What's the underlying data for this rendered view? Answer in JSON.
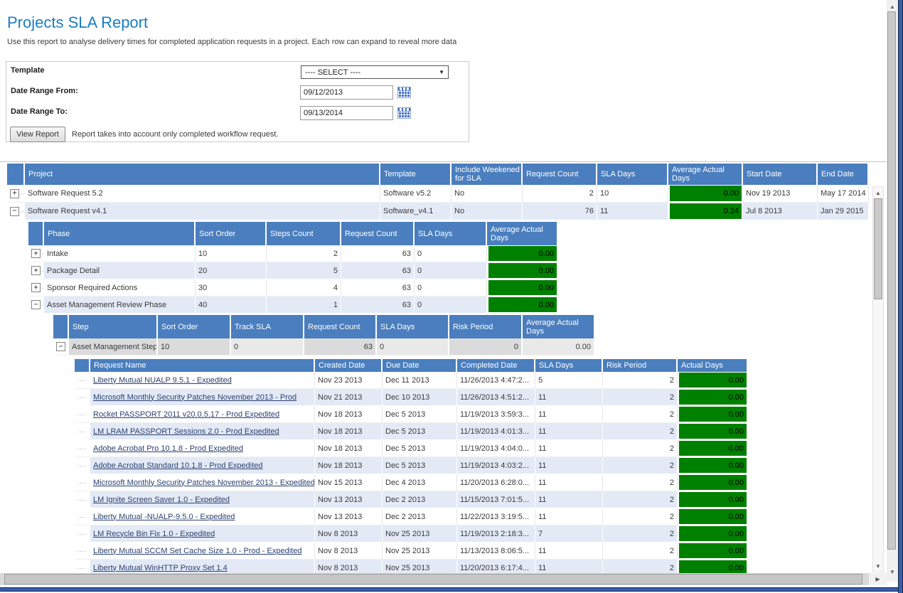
{
  "page": {
    "title": "Projects SLA Report",
    "description": "Use this report to analyse delivery times for completed application requests in a project. Each row can expand to reveal more data"
  },
  "filters": {
    "template_label": "Template",
    "template_value": "---- SELECT ----",
    "date_from_label": "Date Range From:",
    "date_from_value": "09/12/2013",
    "date_to_label": "Date Range To:",
    "date_to_value": "09/13/2014",
    "view_report_label": "View Report",
    "note": "Report takes into account only completed workflow request."
  },
  "colors": {
    "title_blue": "#1a7dc2",
    "header_blue": "#4a7ebe",
    "row_alt": "#e3eaf6",
    "green": "#008000",
    "link": "#2b4070"
  },
  "tables": {
    "projects": {
      "headers": [
        "",
        "Project",
        "Template",
        "Include Weekened for SLA",
        "Request Count",
        "SLA Days",
        "Average Actual Days",
        "Start Date",
        "End Date"
      ],
      "rows": [
        {
          "exp": "+",
          "cells": [
            "Software Request 5.2",
            "Software v5.2",
            "No",
            "2",
            "10",
            "0.00",
            "Nov 19 2013",
            "May 17 2014"
          ]
        },
        {
          "exp": "-",
          "cells": [
            "Software Request v4.1",
            "Software_v4.1",
            "No",
            "76",
            "11",
            "0.24",
            "Jul 8 2013",
            "Jan 29 2015"
          ]
        }
      ]
    },
    "phases": {
      "headers": [
        "",
        "Phase",
        "Sort Order",
        "Steps Count",
        "Request Count",
        "SLA Days",
        "Average Actual Days"
      ],
      "rows": [
        {
          "exp": "+",
          "cells": [
            "Intake",
            "10",
            "2",
            "63",
            "0",
            "0.00"
          ]
        },
        {
          "exp": "+",
          "cells": [
            "Package Detail",
            "20",
            "5",
            "63",
            "0",
            "0.00"
          ]
        },
        {
          "exp": "+",
          "cells": [
            "Sponsor Required Actions",
            "30",
            "4",
            "63",
            "0",
            "0.00"
          ]
        },
        {
          "exp": "-",
          "cells": [
            "Asset Management Review Phase",
            "40",
            "1",
            "63",
            "0",
            "0.00"
          ]
        }
      ]
    },
    "steps": {
      "headers": [
        "",
        "Step",
        "Sort Order",
        "Track SLA",
        "Request Count",
        "SLA Days",
        "Risk Period",
        "Average Actual Days"
      ],
      "rows": [
        {
          "exp": "-",
          "cells": [
            "Asset Management Step",
            "10",
            "0",
            "63",
            "0",
            "0",
            "0.00"
          ]
        }
      ]
    },
    "requests": {
      "headers": [
        "",
        "Request Name",
        "Created Date",
        "Due Date",
        "Completed Date",
        "SLA Days",
        "Risk Period",
        "Actual Days"
      ],
      "rows": [
        {
          "exp": "dots",
          "cells": [
            "Liberty Mutual NUALP 9.5.1 - Expedited",
            "Nov 23 2013",
            "Dec 11 2013",
            "11/26/2013 4:47:2...",
            "5",
            "2",
            "0.00"
          ]
        },
        {
          "exp": "dots",
          "cells": [
            "Microsoft Monthly Security Patches November 2013 - Prod",
            "Nov 21 2013",
            "Dec 10 2013",
            "11/26/2013 4:51:2...",
            "11",
            "2",
            "0.00"
          ]
        },
        {
          "exp": "dots",
          "cells": [
            "Rocket PASSPORT 2011 v20.0.5.17 - Prod Expedited",
            "Nov 18 2013",
            "Dec 5 2013",
            "11/19/2013 3:59:3...",
            "11",
            "2",
            "0.00"
          ]
        },
        {
          "exp": "dots",
          "cells": [
            "LM LRAM PASSPORT Sessions 2.0 - Prod Expedited",
            "Nov 18 2013",
            "Dec 5 2013",
            "11/19/2013 4:01:3...",
            "11",
            "2",
            "0.00"
          ]
        },
        {
          "exp": "dots",
          "cells": [
            "Adobe Acrobat Pro 10.1.8 - Prod Expedited",
            "Nov 18 2013",
            "Dec 5 2013",
            "11/19/2013 4:04:0...",
            "11",
            "2",
            "0.00"
          ]
        },
        {
          "exp": "dots",
          "cells": [
            "Adobe Acrobat Standard 10.1.8 - Prod Expedited",
            "Nov 18 2013",
            "Dec 5 2013",
            "11/19/2013 4:03:2...",
            "11",
            "2",
            "0.00"
          ]
        },
        {
          "exp": "dots",
          "cells": [
            "Microsoft Monthly Security Patches November 2013 - Expedited",
            "Nov 15 2013",
            "Dec 4 2013",
            "11/20/2013 6:28:0...",
            "11",
            "2",
            "0.00"
          ]
        },
        {
          "exp": "dots",
          "cells": [
            "LM Ignite Screen Saver 1.0 - Expedited",
            "Nov 13 2013",
            "Dec 2 2013",
            "11/15/2013 7:01:5...",
            "11",
            "2",
            "0.00"
          ]
        },
        {
          "exp": "dots",
          "cells": [
            "Liberty Mutual -NUALP-9.5.0 - Expedited",
            "Nov 13 2013",
            "Dec 2 2013",
            "11/22/2013 3:19:5...",
            "11",
            "2",
            "0.00"
          ]
        },
        {
          "exp": "dots",
          "cells": [
            "LM Recycle Bin Fix 1.0 - Expedited",
            "Nov 8 2013",
            "Nov 25 2013",
            "11/19/2013 2:18:3...",
            "7",
            "2",
            "0.00"
          ]
        },
        {
          "exp": "dots",
          "cells": [
            "Liberty Mutual SCCM Set Cache Size 1.0 - Prod - Expedited",
            "Nov 8 2013",
            "Nov 25 2013",
            "11/13/2013 8:06:5...",
            "11",
            "2",
            "0.00"
          ]
        },
        {
          "exp": "dots",
          "cells": [
            "Liberty Mutual WinHTTP Proxy Set 1.4",
            "Nov 8 2013",
            "Nov 25 2013",
            "11/20/2013 6:17:4...",
            "11",
            "2",
            "0.00"
          ]
        }
      ]
    }
  }
}
